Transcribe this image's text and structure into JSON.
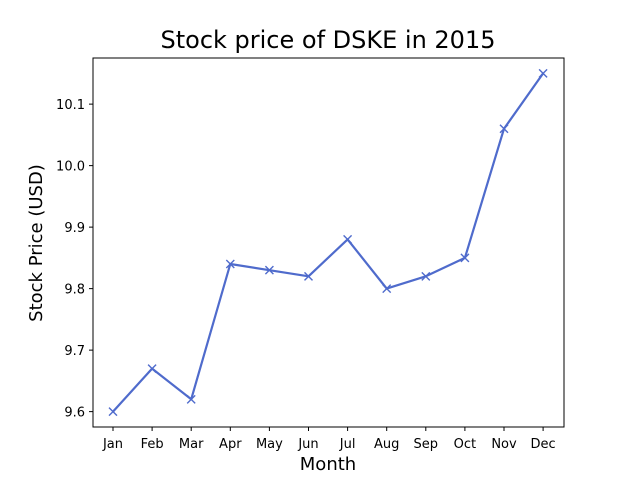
{
  "chart_data": {
    "type": "line",
    "title": "Stock price of DSKE in 2015",
    "xlabel": "Month",
    "ylabel": "Stock Price (USD)",
    "categories": [
      "Jan",
      "Feb",
      "Mar",
      "Apr",
      "May",
      "Jun",
      "Jul",
      "Aug",
      "Sep",
      "Oct",
      "Nov",
      "Dec"
    ],
    "series": [
      {
        "name": "DSKE",
        "values": [
          9.6,
          9.67,
          9.62,
          9.84,
          9.83,
          9.82,
          9.88,
          9.8,
          9.82,
          9.85,
          10.06,
          10.15
        ],
        "color": "#4f6bcc",
        "marker": "x"
      }
    ],
    "yticks": [
      9.6,
      9.7,
      9.8,
      9.9,
      10.0,
      10.1
    ],
    "ytick_labels": [
      "9.6",
      "9.7",
      "9.8",
      "9.9",
      "10.0",
      "10.1"
    ],
    "ylim": [
      9.575,
      10.175
    ],
    "grid": false,
    "legend": "none"
  }
}
